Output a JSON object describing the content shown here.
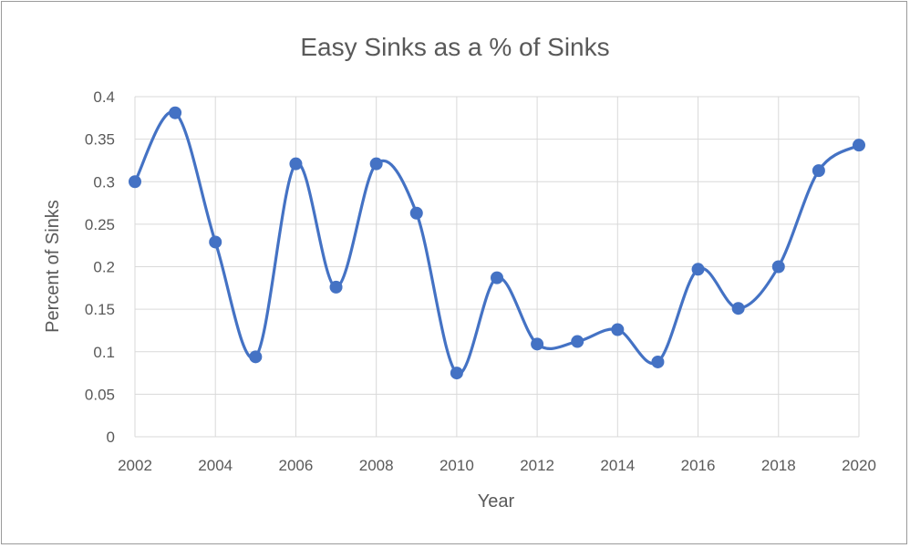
{
  "chart_data": {
    "type": "line",
    "title": "Easy Sinks as a % of Sinks",
    "xlabel": "Year",
    "ylabel": "Percent of Sinks",
    "xlim": [
      2002,
      2020
    ],
    "ylim": [
      0,
      0.4
    ],
    "x_ticks": [
      "2002",
      "2004",
      "2006",
      "2008",
      "2010",
      "2012",
      "2014",
      "2016",
      "2018",
      "2020"
    ],
    "y_ticks": [
      "0",
      "0.05",
      "0.1",
      "0.15",
      "0.2",
      "0.25",
      "0.3",
      "0.35",
      "0.4"
    ],
    "grid": true,
    "smooth": true,
    "markers": true,
    "color": "#4472c4",
    "series": [
      {
        "x": [
          2002,
          2003,
          2004,
          2005,
          2006,
          2007,
          2008,
          2009,
          2010,
          2011,
          2012,
          2013,
          2014,
          2015,
          2016,
          2017,
          2018,
          2019,
          2020
        ],
        "values": [
          0.3,
          0.381,
          0.229,
          0.094,
          0.321,
          0.176,
          0.321,
          0.263,
          0.075,
          0.187,
          0.109,
          0.112,
          0.126,
          0.088,
          0.197,
          0.151,
          0.2,
          0.313,
          0.343
        ]
      }
    ]
  }
}
